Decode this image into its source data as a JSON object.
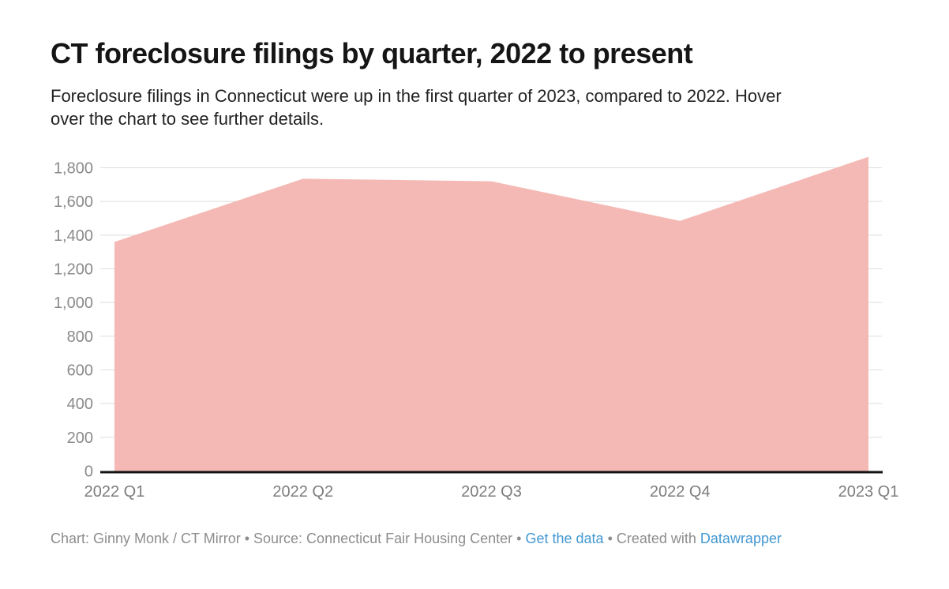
{
  "header": {
    "title": "CT foreclosure filings by quarter, 2022 to present",
    "description_lines": [
      "Foreclosure filings in Connecticut were up in the first quarter of 2023, compared to 2022. Hover",
      "over the chart to see further details."
    ]
  },
  "chart_data": {
    "type": "area",
    "title": "CT foreclosure filings by quarter, 2022 to present",
    "categories": [
      "2022 Q1",
      "2022 Q2",
      "2022 Q3",
      "2022 Q4",
      "2023 Q1"
    ],
    "values": [
      1360,
      1735,
      1720,
      1485,
      1865
    ],
    "series_name": "Foreclosure filings",
    "xlabel": "",
    "ylabel": "",
    "ylim": [
      0,
      1800
    ],
    "ytick_step": 200,
    "ytick_labels": [
      "0",
      "200",
      "400",
      "600",
      "800",
      "1,000",
      "1,200",
      "1,400",
      "1,600",
      "1,800"
    ],
    "grid": "horizontal",
    "legend": "none",
    "colors": {
      "area_fill": "#f4b9b5",
      "axis_line": "#141414",
      "gridline": "#dedede",
      "y_tick_text": "#8b8b8b",
      "x_tick_text": "#7d7d7d"
    }
  },
  "footer": {
    "credit": "Chart: Ginny Monk / CT Mirror • Source: Connecticut Fair Housing Center • ",
    "get_data_link": "Get the data",
    "middle": " • Created with ",
    "tool_link": "Datawrapper",
    "link_color": "#4298d2"
  }
}
